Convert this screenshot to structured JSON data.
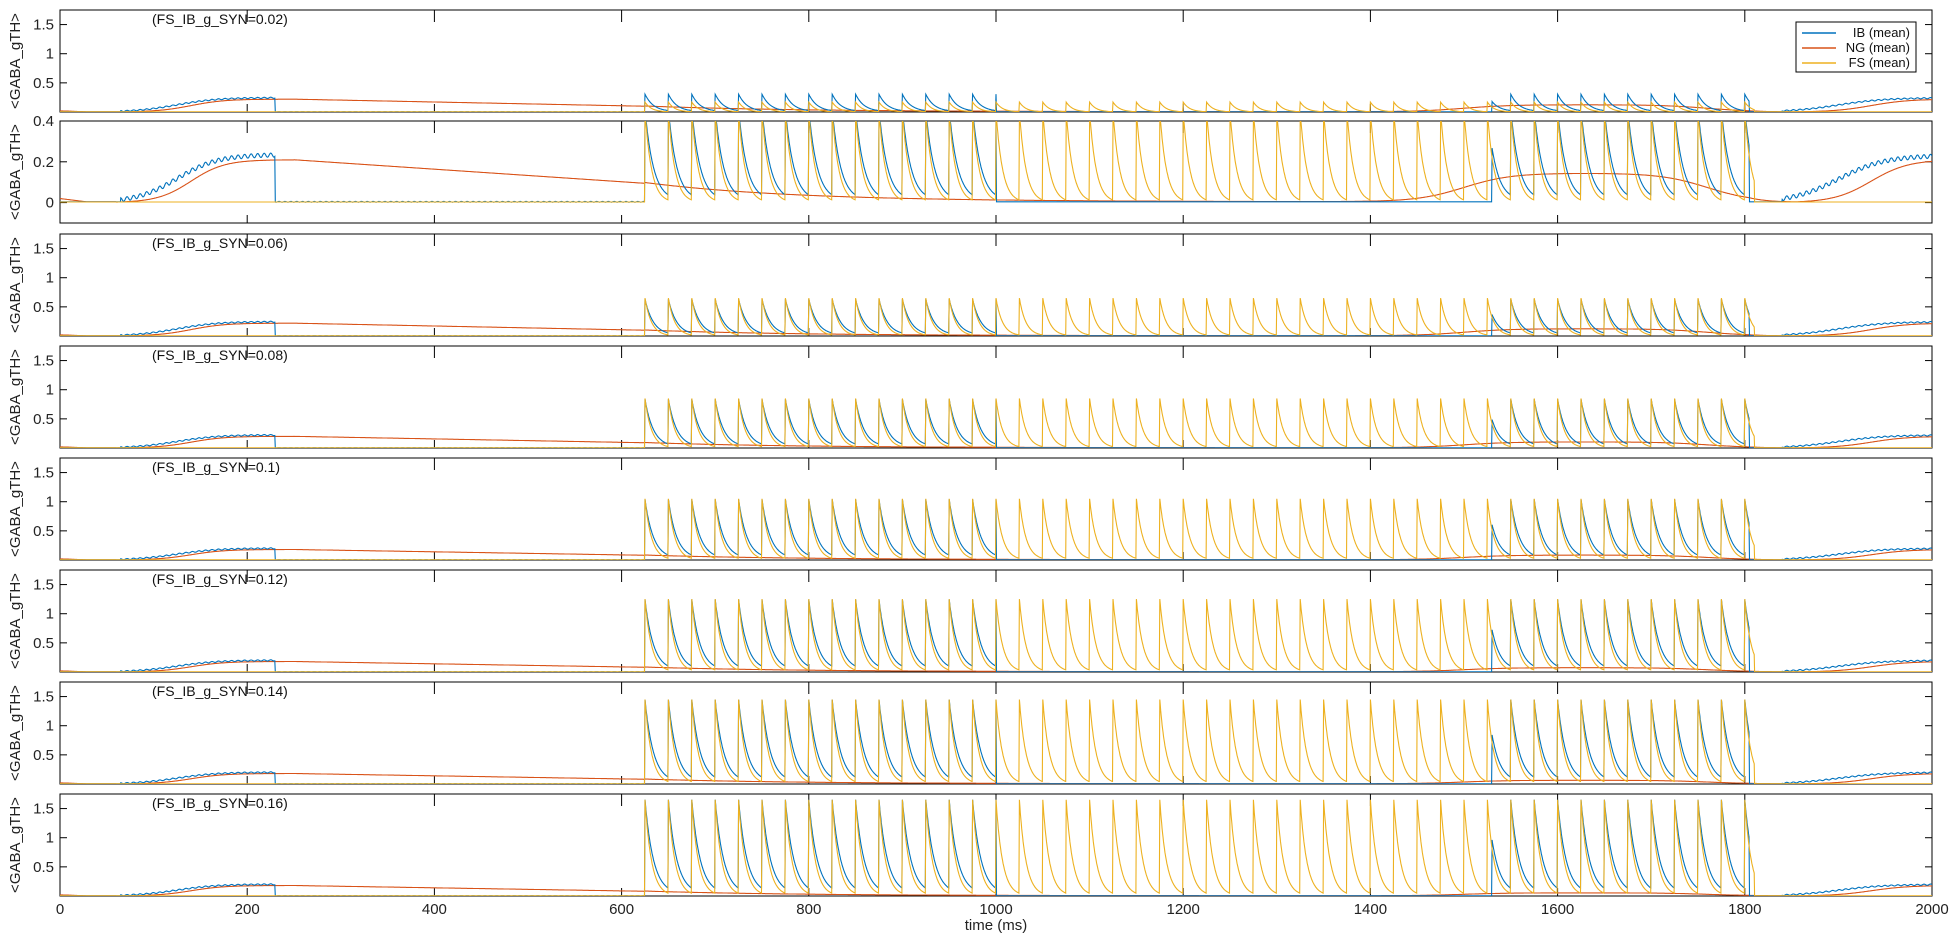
{
  "chart_data": {
    "type": "line",
    "xlabel": "time (ms)",
    "xlim": [
      0,
      2000
    ],
    "xticks": [
      0,
      200,
      400,
      600,
      800,
      1000,
      1200,
      1400,
      1600,
      1800,
      2000
    ],
    "legend": {
      "placement": "top-right of first panel",
      "entries": [
        "IB (mean)",
        "NG (mean)",
        "FS (mean)"
      ]
    },
    "colors": {
      "IB": "#0072BD",
      "NG": "#D95319",
      "FS": "#EDB120"
    },
    "stimulus": {
      "pulse_start_ms": 625,
      "pulse_end_ms": 1805,
      "pulse_period_ms": 25,
      "fs_only_window_ms": [
        1000,
        1530
      ]
    },
    "panels": [
      {
        "title": "(FS_IB_g_SYN=0.02)",
        "ylabel": "<GABA_gTH>",
        "ylim": [
          0,
          1.75
        ],
        "yticks": [
          0.5,
          1,
          1.5
        ],
        "ytick_labels": [
          "0.5",
          "1",
          "1.5"
        ],
        "g_syn": 0.02,
        "fs_peak": 0.17,
        "ib_peak": 0.3,
        "ng_plateau": 0.22,
        "ng_late_peak": 0.12
      },
      {
        "title": "",
        "ylabel": "<GABA_gTH>",
        "ylim": [
          -0.1,
          0.4
        ],
        "yticks": [
          0,
          0.2,
          0.4
        ],
        "ytick_labels": [
          "0",
          "0.2",
          "0.4"
        ],
        "g_syn": 0.02,
        "fs_peak": 0.45,
        "ib_peak": 0.45,
        "ng_plateau": 0.21,
        "ng_late_peak": 0.14
      },
      {
        "title": "(FS_IB_g_SYN=0.06)",
        "ylabel": "<GABA_gTH>",
        "ylim": [
          0,
          1.75
        ],
        "yticks": [
          0.5,
          1,
          1.5
        ],
        "ytick_labels": [
          "0.5",
          "1",
          "1.5"
        ],
        "g_syn": 0.06,
        "fs_peak": 0.65,
        "ib_peak": 0.62,
        "ng_plateau": 0.22,
        "ng_late_peak": 0.12
      },
      {
        "title": "(FS_IB_g_SYN=0.08)",
        "ylabel": "<GABA_gTH>",
        "ylim": [
          0,
          1.75
        ],
        "yticks": [
          0.5,
          1,
          1.5
        ],
        "ytick_labels": [
          "0.5",
          "1",
          "1.5"
        ],
        "g_syn": 0.08,
        "fs_peak": 0.85,
        "ib_peak": 0.82,
        "ng_plateau": 0.2,
        "ng_late_peak": 0.1
      },
      {
        "title": "(FS_IB_g_SYN=0.1)",
        "ylabel": "<GABA_gTH>",
        "ylim": [
          0,
          1.75
        ],
        "yticks": [
          0.5,
          1,
          1.5
        ],
        "ytick_labels": [
          "0.5",
          "1",
          "1.5"
        ],
        "g_syn": 0.1,
        "fs_peak": 1.05,
        "ib_peak": 1.02,
        "ng_plateau": 0.18,
        "ng_late_peak": 0.08
      },
      {
        "title": "(FS_IB_g_SYN=0.12)",
        "ylabel": "<GABA_gTH>",
        "ylim": [
          0,
          1.75
        ],
        "yticks": [
          0.5,
          1,
          1.5
        ],
        "ytick_labels": [
          "0.5",
          "1",
          "1.5"
        ],
        "g_syn": 0.12,
        "fs_peak": 1.25,
        "ib_peak": 1.22,
        "ng_plateau": 0.18,
        "ng_late_peak": 0.07
      },
      {
        "title": "(FS_IB_g_SYN=0.14)",
        "ylabel": "<GABA_gTH>",
        "ylim": [
          0,
          1.75
        ],
        "yticks": [
          0.5,
          1,
          1.5
        ],
        "ytick_labels": [
          "0.5",
          "1",
          "1.5"
        ],
        "g_syn": 0.14,
        "fs_peak": 1.45,
        "ib_peak": 1.42,
        "ng_plateau": 0.18,
        "ng_late_peak": 0.06
      },
      {
        "title": "(FS_IB_g_SYN=0.16)",
        "ylabel": "<GABA_gTH>",
        "ylim": [
          0,
          1.75
        ],
        "yticks": [
          0.5,
          1,
          1.5
        ],
        "ytick_labels": [
          "0.5",
          "1",
          "1.5"
        ],
        "g_syn": 0.16,
        "fs_peak": 1.65,
        "ib_peak": 1.62,
        "ng_plateau": 0.18,
        "ng_late_peak": 0.05
      }
    ]
  }
}
